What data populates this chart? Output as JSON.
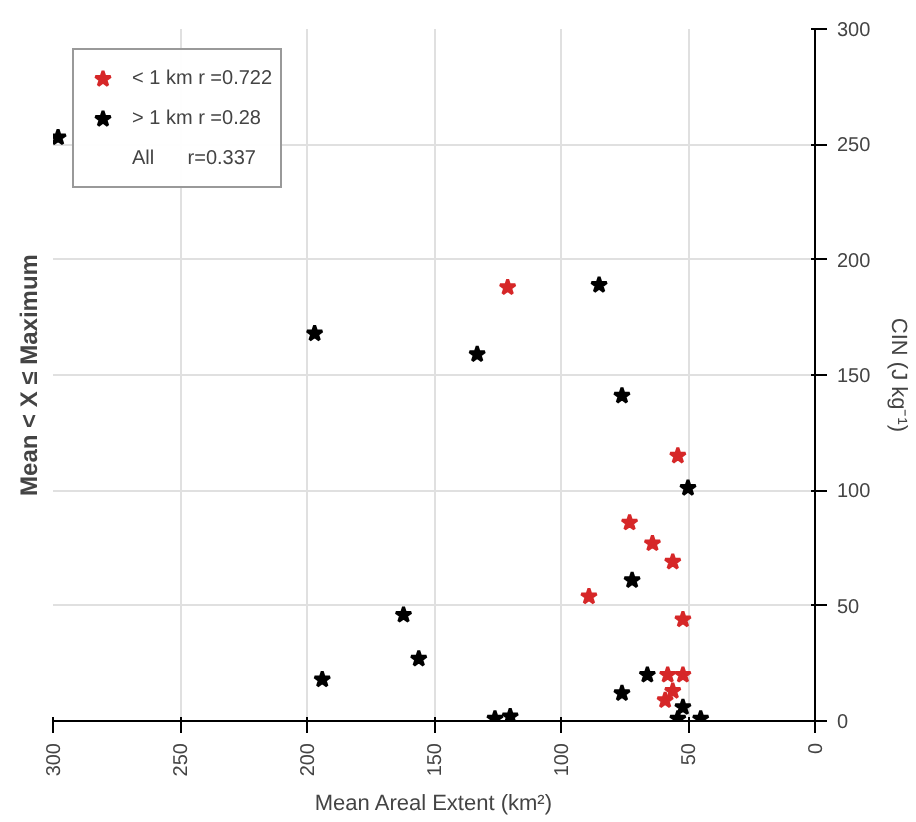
{
  "chart_data": {
    "type": "scatter",
    "title": "Mean < X ≤ Maximum",
    "xlabel": "Mean Areal Extent (km²)",
    "ylabel": "CIN (J kg⁻¹)",
    "xlim": [
      300,
      0
    ],
    "ylim": [
      0,
      300
    ],
    "xticks": [
      300,
      250,
      200,
      150,
      100,
      50,
      0
    ],
    "yticks": [
      0,
      50,
      100,
      150,
      200,
      250,
      300
    ],
    "grid": true,
    "legend": "top left",
    "marker": "star",
    "annotations": [
      "All      r=0.337"
    ],
    "series": [
      {
        "name": "< 1 km r =0.722",
        "color": "#d62728",
        "x": [
          121,
          54,
          73,
          64,
          56,
          89,
          52,
          58,
          52,
          56,
          59
        ],
        "values": [
          188,
          115,
          86,
          77,
          69,
          54,
          44,
          20,
          20,
          13,
          9
        ]
      },
      {
        "name": "> 1 km r =0.28",
        "color": "#000000",
        "x": [
          298,
          197,
          85,
          133,
          76,
          162,
          156,
          194,
          126,
          120,
          50,
          72,
          66,
          76,
          52,
          54,
          45
        ],
        "values": [
          253,
          168,
          189,
          159,
          141,
          46,
          27,
          18,
          1,
          2,
          101,
          61,
          20,
          12,
          6,
          1,
          1
        ]
      }
    ]
  }
}
